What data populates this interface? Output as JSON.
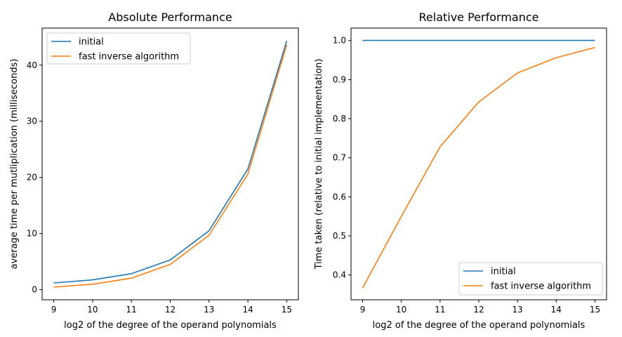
{
  "chart_data": [
    {
      "type": "line",
      "title": "Absolute Performance",
      "xlabel": "log2 of the degree of the operand polynomials",
      "ylabel": "average time per mutliplication (milliseconds)",
      "x": [
        9,
        10,
        11,
        12,
        13,
        14,
        15
      ],
      "xticks": [
        "9",
        "10",
        "11",
        "12",
        "13",
        "14",
        "15"
      ],
      "yticks": [
        "0",
        "10",
        "20",
        "30",
        "40"
      ],
      "xlim": [
        8.7,
        15.3
      ],
      "ylim": [
        -1.8,
        46.6
      ],
      "legend_position": "top-left",
      "series": [
        {
          "name": "initial",
          "color": "#1f77b4",
          "values": [
            1.2,
            1.75,
            2.85,
            5.3,
            10.5,
            21.5,
            44.3
          ]
        },
        {
          "name": "fast inverse algorithm",
          "color": "#ff7f0e",
          "values": [
            0.45,
            0.98,
            2.05,
            4.5,
            9.7,
            20.6,
            43.6
          ]
        }
      ]
    },
    {
      "type": "line",
      "title": "Relative Performance",
      "xlabel": "log2 of the degree of the operand polynomials",
      "ylabel": "Time taken (relative to initial implementation)",
      "x": [
        9,
        10,
        11,
        12,
        13,
        14,
        15
      ],
      "xticks": [
        "9",
        "10",
        "11",
        "12",
        "13",
        "14",
        "15"
      ],
      "yticks": [
        "0.4",
        "0.5",
        "0.6",
        "0.7",
        "0.8",
        "0.9",
        "1.0"
      ],
      "xlim": [
        8.7,
        15.3
      ],
      "ylim": [
        0.3366,
        1.0317
      ],
      "legend_position": "bottom-right",
      "series": [
        {
          "name": "initial",
          "color": "#1f77b4",
          "values": [
            1.0,
            1.0,
            1.0,
            1.0,
            1.0,
            1.0,
            1.0
          ]
        },
        {
          "name": "fast inverse algorithm",
          "color": "#ff7f0e",
          "values": [
            0.367,
            0.55,
            0.728,
            0.843,
            0.917,
            0.956,
            0.982
          ]
        }
      ]
    }
  ]
}
